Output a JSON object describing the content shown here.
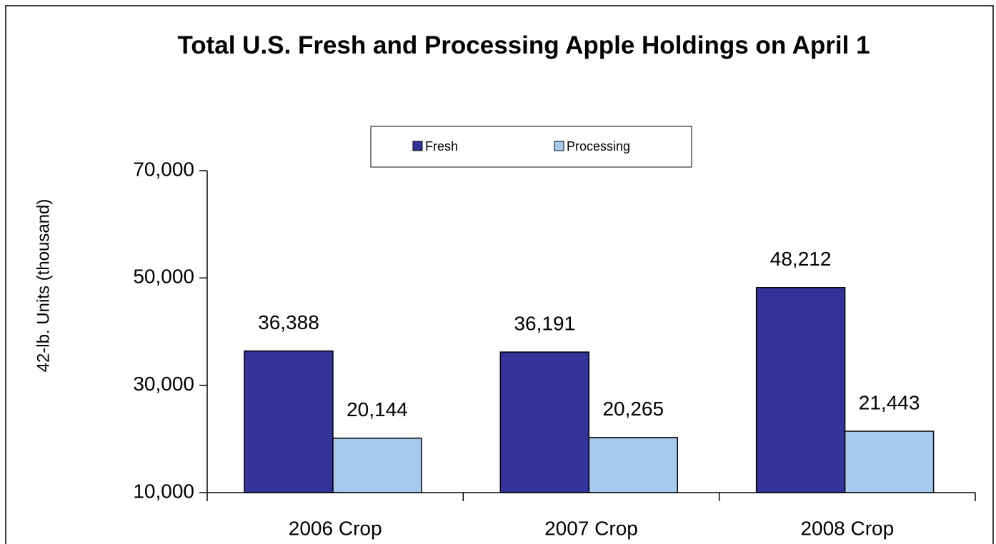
{
  "chart_data": {
    "type": "bar",
    "title": "Total U.S. Fresh and Processing Apple Holdings on April 1",
    "y_label": "42-lb. Units (thousand)",
    "categories": [
      "2006 Crop",
      "2007 Crop",
      "2008 Crop"
    ],
    "series": [
      {
        "name": "Fresh",
        "color": "#333399",
        "values": [
          36388,
          36191,
          48212
        ],
        "value_labels": [
          "36,388",
          "36,191",
          "48,212"
        ]
      },
      {
        "name": "Processing",
        "color": "#a6caec",
        "values": [
          20144,
          20265,
          21443
        ],
        "value_labels": [
          "20,144",
          "20,265",
          "21,443"
        ]
      }
    ],
    "ylim": [
      10000,
      70000
    ],
    "yticks": [
      {
        "value": 10000,
        "label": "10,000"
      },
      {
        "value": 30000,
        "label": "30,000"
      },
      {
        "value": 50000,
        "label": "50,000"
      },
      {
        "value": 70000,
        "label": "70,000"
      }
    ],
    "grid": false
  }
}
